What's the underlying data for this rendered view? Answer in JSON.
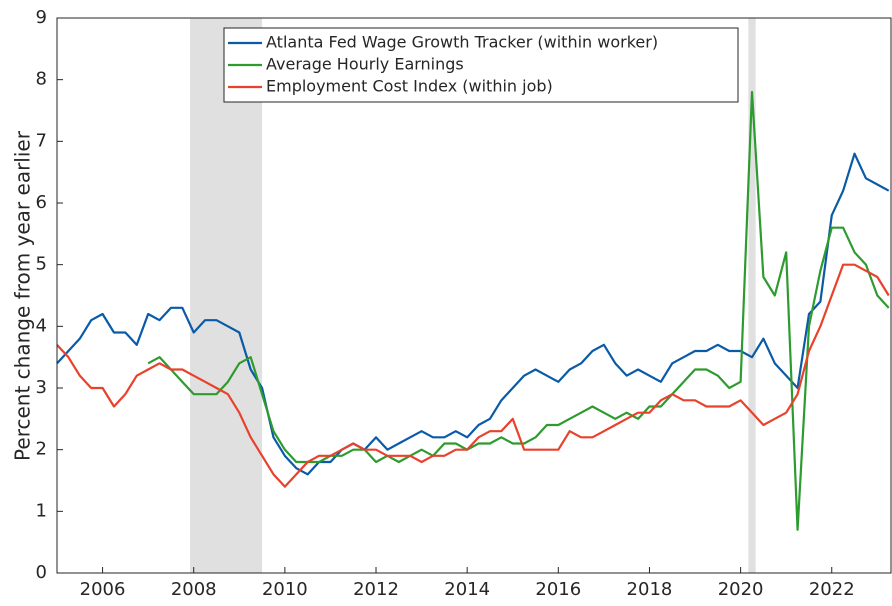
{
  "chart_data": {
    "type": "line",
    "ylabel": "Percent change from year earlier",
    "x": [
      2005,
      2005.25,
      2005.5,
      2005.75,
      2006,
      2006.25,
      2006.5,
      2006.75,
      2007,
      2007.25,
      2007.5,
      2007.75,
      2008,
      2008.25,
      2008.5,
      2008.75,
      2009,
      2009.25,
      2009.5,
      2009.75,
      2010,
      2010.25,
      2010.5,
      2010.75,
      2011,
      2011.25,
      2011.5,
      2011.75,
      2012,
      2012.25,
      2012.5,
      2012.75,
      2013,
      2013.25,
      2013.5,
      2013.75,
      2014,
      2014.25,
      2014.5,
      2014.75,
      2015,
      2015.25,
      2015.5,
      2015.75,
      2016,
      2016.25,
      2016.5,
      2016.75,
      2017,
      2017.25,
      2017.5,
      2017.75,
      2018,
      2018.25,
      2018.5,
      2018.75,
      2019,
      2019.25,
      2019.5,
      2019.75,
      2020,
      2020.25,
      2020.5,
      2020.75,
      2021,
      2021.25,
      2021.5,
      2021.75,
      2022,
      2022.25,
      2022.5,
      2022.75,
      2023,
      2023.25
    ],
    "series": [
      {
        "name": "Atlanta Fed Wage Growth Tracker (within worker)",
        "color": "#0a5aa8",
        "values": [
          3.4,
          3.6,
          3.8,
          4.1,
          4.2,
          3.9,
          3.9,
          3.7,
          4.2,
          4.1,
          4.3,
          4.3,
          3.9,
          4.1,
          4.1,
          4.0,
          3.9,
          3.3,
          3.0,
          2.2,
          1.9,
          1.7,
          1.6,
          1.8,
          1.8,
          2.0,
          2.1,
          2.0,
          2.2,
          2.0,
          2.1,
          2.2,
          2.3,
          2.2,
          2.2,
          2.3,
          2.2,
          2.4,
          2.5,
          2.8,
          3.0,
          3.2,
          3.3,
          3.2,
          3.1,
          3.3,
          3.4,
          3.6,
          3.7,
          3.4,
          3.2,
          3.3,
          3.2,
          3.1,
          3.4,
          3.5,
          3.6,
          3.6,
          3.7,
          3.6,
          3.6,
          3.5,
          3.8,
          3.4,
          3.2,
          3.0,
          4.2,
          4.4,
          5.8,
          6.2,
          6.8,
          6.4,
          6.3,
          6.2
        ]
      },
      {
        "name": "Average Hourly Earnings",
        "color": "#2e9b2e",
        "values": [
          null,
          null,
          null,
          null,
          null,
          null,
          null,
          null,
          3.4,
          3.5,
          3.3,
          3.1,
          2.9,
          2.9,
          2.9,
          3.1,
          3.4,
          3.5,
          2.9,
          2.3,
          2.0,
          1.8,
          1.8,
          1.8,
          1.9,
          1.9,
          2.0,
          2.0,
          1.8,
          1.9,
          1.8,
          1.9,
          2.0,
          1.9,
          2.1,
          2.1,
          2.0,
          2.1,
          2.1,
          2.2,
          2.1,
          2.1,
          2.2,
          2.4,
          2.4,
          2.5,
          2.6,
          2.7,
          2.6,
          2.5,
          2.6,
          2.5,
          2.7,
          2.7,
          2.9,
          3.1,
          3.3,
          3.3,
          3.2,
          3.0,
          3.1,
          7.8,
          4.8,
          4.5,
          5.2,
          0.7,
          4.0,
          4.9,
          5.6,
          5.6,
          5.2,
          5.0,
          4.5,
          4.3
        ]
      },
      {
        "name": "Employment Cost Index (within job)",
        "color": "#e8412c",
        "values": [
          3.7,
          3.5,
          3.2,
          3.0,
          3.0,
          2.7,
          2.9,
          3.2,
          3.3,
          3.4,
          3.3,
          3.3,
          3.2,
          3.1,
          3.0,
          2.9,
          2.6,
          2.2,
          1.9,
          1.6,
          1.4,
          1.6,
          1.8,
          1.9,
          1.9,
          2.0,
          2.1,
          2.0,
          2.0,
          1.9,
          1.9,
          1.9,
          1.8,
          1.9,
          1.9,
          2.0,
          2.0,
          2.2,
          2.3,
          2.3,
          2.5,
          2.0,
          2.0,
          2.0,
          2.0,
          2.3,
          2.2,
          2.2,
          2.3,
          2.4,
          2.5,
          2.6,
          2.6,
          2.8,
          2.9,
          2.8,
          2.8,
          2.7,
          2.7,
          2.7,
          2.8,
          2.6,
          2.4,
          2.5,
          2.6,
          2.9,
          3.6,
          4.0,
          4.5,
          5.0,
          5.0,
          4.9,
          4.8,
          4.5
        ]
      }
    ],
    "shaded_regions": [
      [
        2007.92,
        2009.5
      ],
      [
        2020.17,
        2020.33
      ]
    ],
    "shade_color": "#e0e0e0",
    "xlim": [
      2005,
      2023.3
    ],
    "xticks": [
      2006,
      2008,
      2010,
      2012,
      2014,
      2016,
      2018,
      2020,
      2022
    ],
    "ylim": [
      0,
      9
    ],
    "yticks": [
      0,
      1,
      2,
      3,
      4,
      5,
      6,
      7,
      8,
      9
    ],
    "legend": "upper center"
  }
}
